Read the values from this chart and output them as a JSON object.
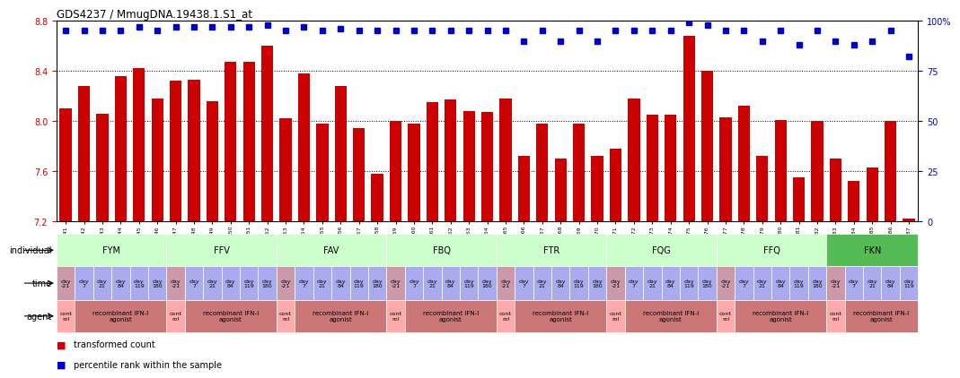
{
  "title": "GDS4237 / MmugDNA.19438.1.S1_at",
  "gsm_labels": [
    "GSM868941",
    "GSM868942",
    "GSM868943",
    "GSM868944",
    "GSM868945",
    "GSM868946",
    "GSM868947",
    "GSM868948",
    "GSM868949",
    "GSM868950",
    "GSM868951",
    "GSM868952",
    "GSM868953",
    "GSM868954",
    "GSM868955",
    "GSM868956",
    "GSM868957",
    "GSM868958",
    "GSM868959",
    "GSM868960",
    "GSM868961",
    "GSM868962",
    "GSM868963",
    "GSM868964",
    "GSM868965",
    "GSM868966",
    "GSM868967",
    "GSM868968",
    "GSM868969",
    "GSM868970",
    "GSM868971",
    "GSM868972",
    "GSM868973",
    "GSM868974",
    "GSM868975",
    "GSM868976",
    "GSM868977",
    "GSM868978",
    "GSM868979",
    "GSM868980",
    "GSM868981",
    "GSM868982",
    "GSM868983",
    "GSM868984",
    "GSM868985",
    "GSM868986",
    "GSM868987"
  ],
  "bar_values": [
    8.1,
    8.28,
    8.06,
    8.36,
    8.42,
    8.18,
    8.32,
    8.33,
    8.16,
    8.47,
    8.47,
    8.6,
    8.02,
    8.38,
    7.98,
    8.28,
    7.94,
    7.58,
    8.0,
    7.98,
    8.15,
    8.17,
    8.08,
    8.07,
    8.18,
    7.72,
    7.98,
    7.7,
    7.98,
    7.72,
    7.78,
    8.18,
    8.05,
    8.05,
    8.68,
    8.4,
    8.03,
    8.12,
    7.72,
    8.01,
    7.55,
    8.0,
    7.7,
    7.52,
    7.63,
    8.0,
    7.22
  ],
  "percentile_values": [
    95,
    95,
    95,
    95,
    97,
    95,
    97,
    97,
    97,
    97,
    97,
    98,
    95,
    97,
    95,
    96,
    95,
    95,
    95,
    95,
    95,
    95,
    95,
    95,
    95,
    90,
    95,
    90,
    95,
    90,
    95,
    95,
    95,
    95,
    99,
    98,
    95,
    95,
    90,
    95,
    88,
    95,
    90,
    88,
    90,
    95,
    82
  ],
  "bar_color": "#cc0000",
  "percentile_color": "#0000cc",
  "ylim_left": [
    7.2,
    8.8
  ],
  "ylim_right": [
    0,
    100
  ],
  "yticks_left": [
    7.2,
    7.6,
    8.0,
    8.4,
    8.8
  ],
  "yticks_right": [
    0,
    25,
    50,
    75,
    100
  ],
  "ytick_labels_right": [
    "0",
    "25",
    "50",
    "75",
    "100%"
  ],
  "grid_values": [
    7.6,
    8.0,
    8.4
  ],
  "individuals": [
    {
      "name": "FYM",
      "start": 0,
      "end": 6,
      "color": "#ccffcc"
    },
    {
      "name": "FFV",
      "start": 6,
      "end": 12,
      "color": "#ccffcc"
    },
    {
      "name": "FAV",
      "start": 12,
      "end": 18,
      "color": "#ccffcc"
    },
    {
      "name": "FBQ",
      "start": 18,
      "end": 24,
      "color": "#ccffcc"
    },
    {
      "name": "FTR",
      "start": 24,
      "end": 30,
      "color": "#ccffcc"
    },
    {
      "name": "FQG",
      "start": 30,
      "end": 36,
      "color": "#ccffcc"
    },
    {
      "name": "FFQ",
      "start": 36,
      "end": 42,
      "color": "#ccffcc"
    },
    {
      "name": "FKN",
      "start": 42,
      "end": 47,
      "color": "#55bb55"
    }
  ],
  "time_days": [
    -21,
    7,
    21,
    84,
    119,
    180
  ],
  "time_ctrl_color": "#cc99aa",
  "time_agonist_color": "#aaaaee",
  "agent_control_color": "#ffaaaa",
  "agent_agonist_color": "#cc7777",
  "gsm_header_color": "#cccccc",
  "background_color": "#ffffff",
  "legend_red_label": "transformed count",
  "legend_blue_label": "percentile rank within the sample"
}
